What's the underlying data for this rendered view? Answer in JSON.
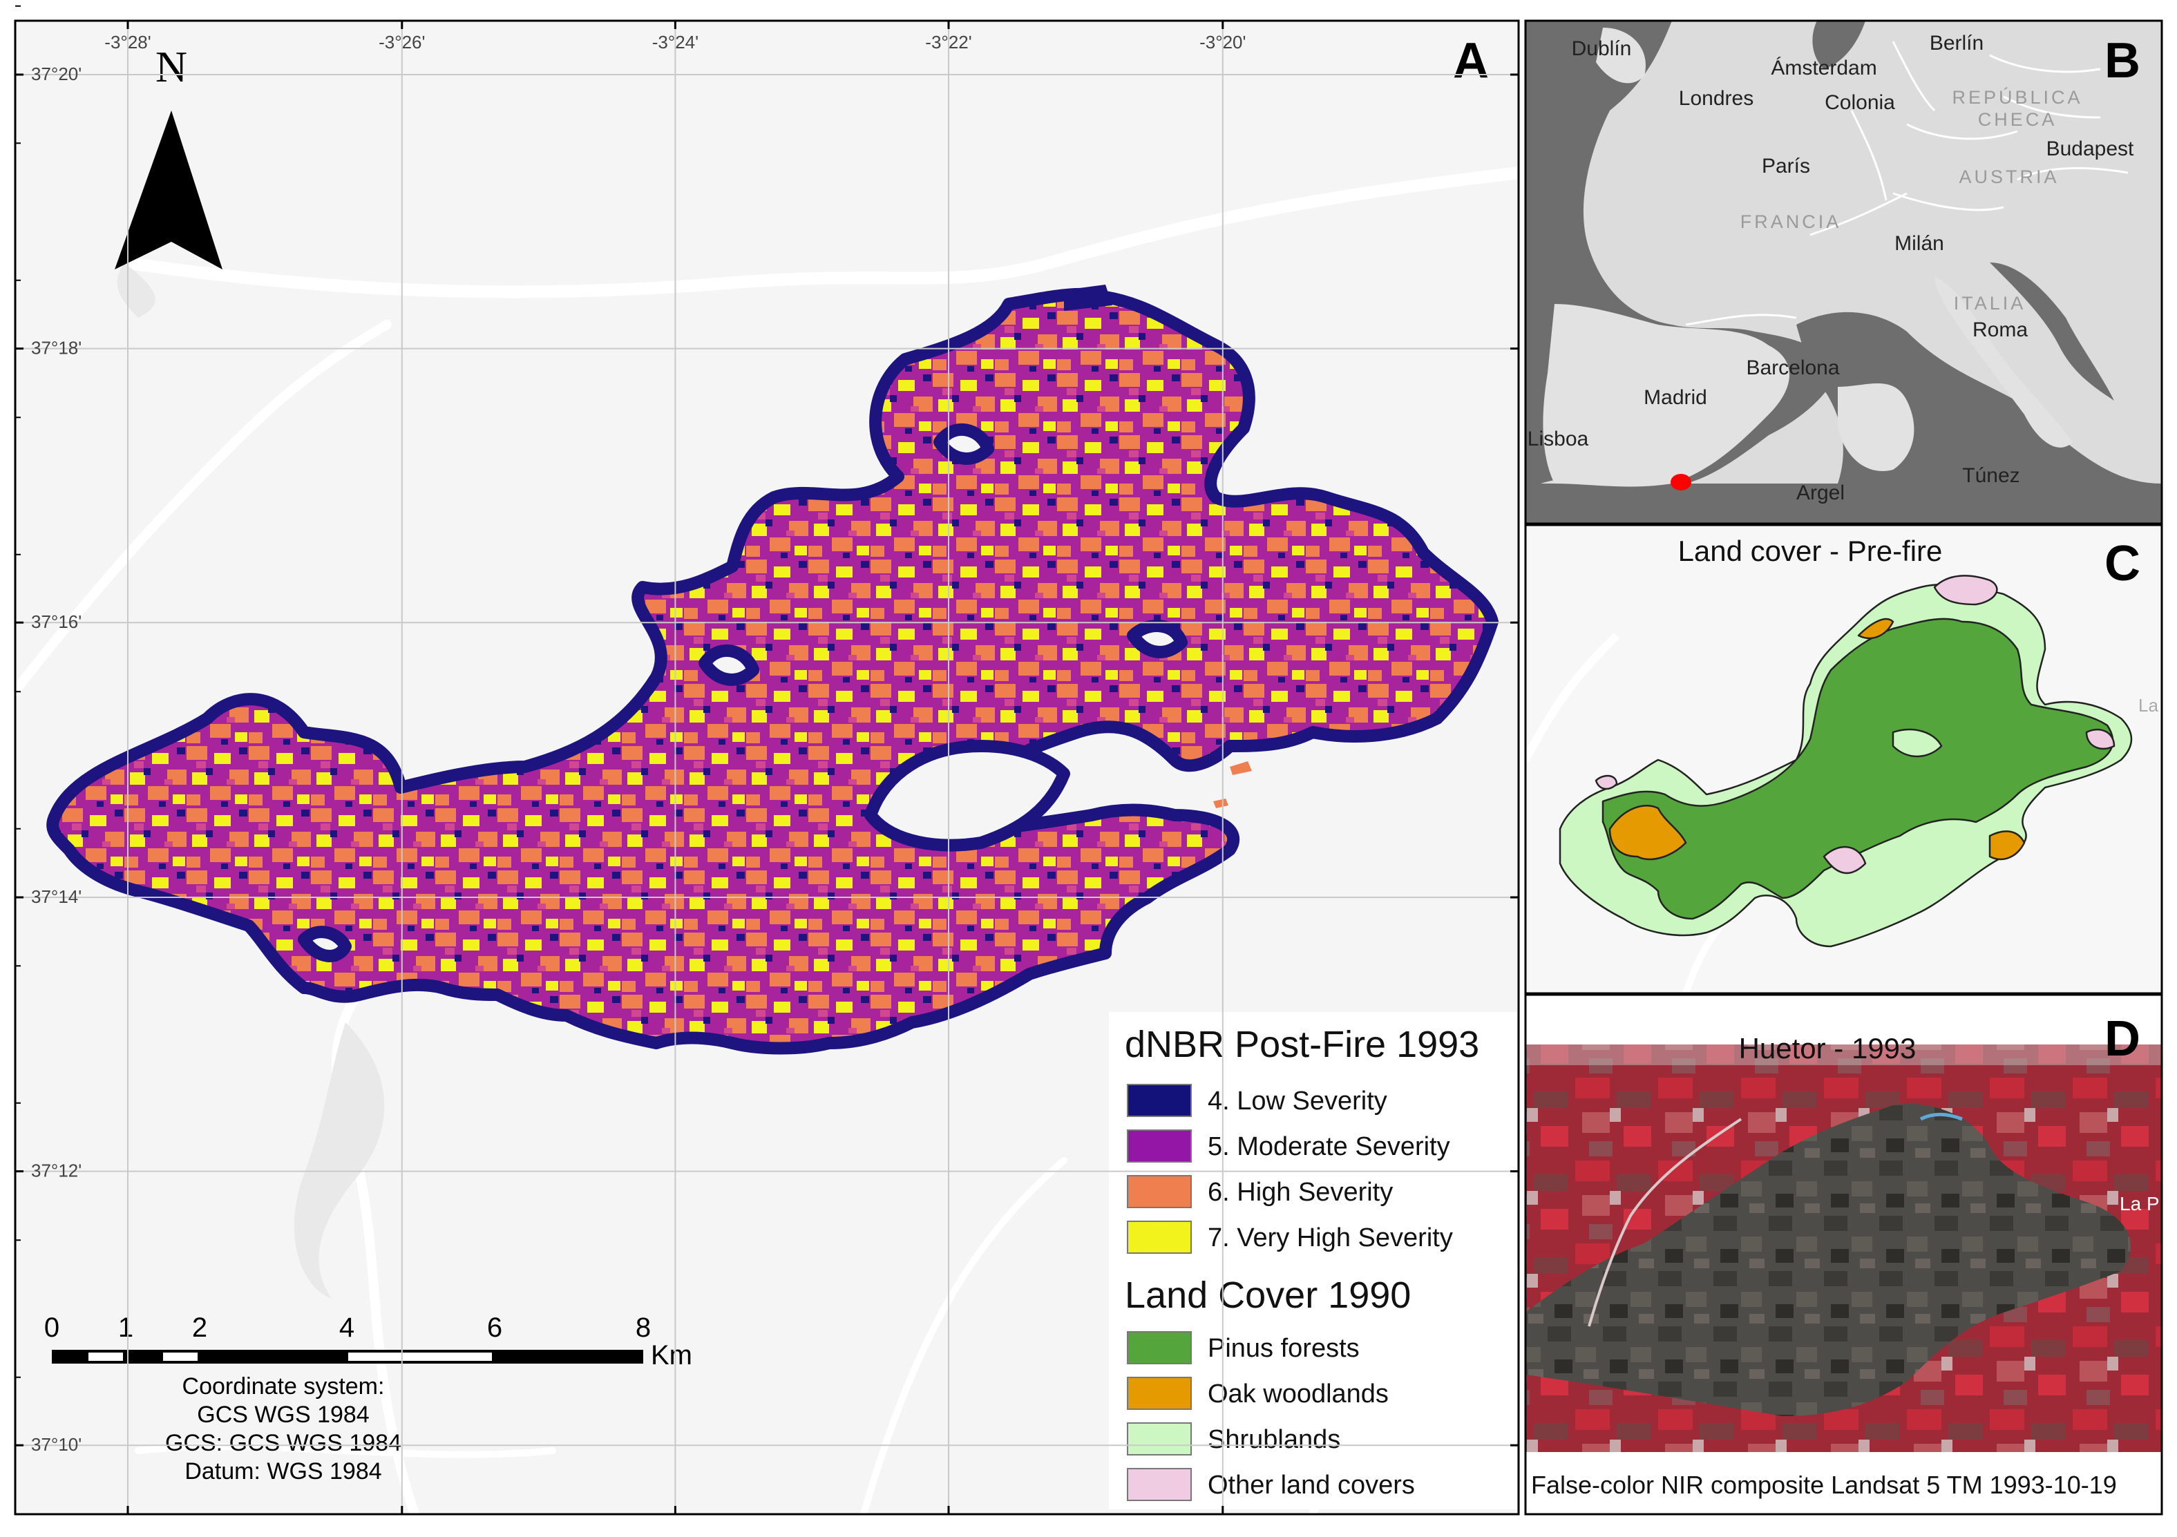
{
  "panel_a": {
    "letter": "A",
    "north_label": "N",
    "lon_ticks": [
      {
        "value": -3.4667,
        "label": "-3°28'"
      },
      {
        "value": -3.4333,
        "label": "-3°26'"
      },
      {
        "value": -3.4,
        "label": "-3°24'"
      },
      {
        "value": -3.3667,
        "label": "-3°22'"
      },
      {
        "value": -3.3333,
        "label": "-3°20'"
      }
    ],
    "lat_ticks": [
      {
        "value": 37.3333,
        "label": "37°20'"
      },
      {
        "value": 37.3,
        "label": "37°18'"
      },
      {
        "value": 37.2667,
        "label": "37°16'"
      },
      {
        "value": 37.2333,
        "label": "37°14'"
      },
      {
        "value": 37.2,
        "label": "37°12'"
      },
      {
        "value": 37.1667,
        "label": "37°10'"
      }
    ],
    "scale_bar": {
      "labels": [
        "0",
        "1",
        "2",
        "4",
        "6",
        "8"
      ],
      "unit": "Km"
    },
    "coordinate_info": [
      "Coordinate system:",
      "GCS WGS 1984",
      "GCS: GCS WGS 1984",
      "Datum: WGS 1984"
    ],
    "legend": {
      "title1": "dNBR Post-Fire 1993",
      "severity": [
        {
          "label": "4. Low Severity",
          "color": "#12127a"
        },
        {
          "label": "5. Moderate Severity",
          "color": "#9416a6"
        },
        {
          "label": "6. High Severity",
          "color": "#f07f50"
        },
        {
          "label": "7. Very High Severity",
          "color": "#f2f21c"
        }
      ],
      "title2": "Land Cover 1990",
      "landcover": [
        {
          "label": "Pinus forests",
          "color": "#54a53c"
        },
        {
          "label": "Oak woodlands",
          "color": "#e49a00"
        },
        {
          "label": "Shrublands",
          "color": "#cdf7c2"
        },
        {
          "label": "Other land covers",
          "color": "#f0cce3"
        }
      ]
    }
  },
  "panel_b": {
    "letter": "B",
    "cities": [
      "Dublín",
      "Ámsterdam",
      "Berlín",
      "Londres",
      "Colonia",
      "París",
      "Budapest",
      "Milán",
      "Roma",
      "Barcelona",
      "Madrid",
      "Lisboa",
      "Argel",
      "Túnez"
    ],
    "countries": [
      "REPÚBLICA",
      "CHECA",
      "AUSTRIA",
      "FRANCIA",
      "ITALIA"
    ],
    "marker_color": "#ff0000"
  },
  "panel_c": {
    "letter": "C",
    "title": "Land cover - Pre-fire",
    "edge_text": "La"
  },
  "panel_d": {
    "letter": "D",
    "title": "Huetor - 1993",
    "edge_text": "La P",
    "caption": "False-color NIR composite Landsat 5 TM 1993-10-19"
  }
}
